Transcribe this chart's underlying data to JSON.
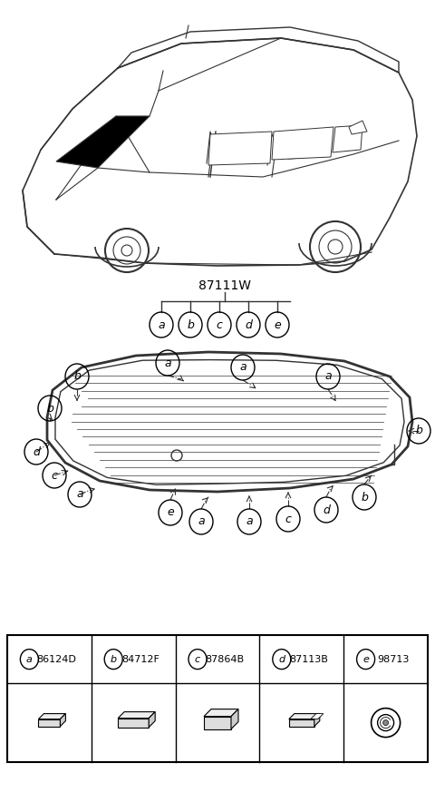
{
  "bg_color": "#ffffff",
  "title": "87111W",
  "parts": [
    {
      "label": "a",
      "part_num": "86124D"
    },
    {
      "label": "b",
      "part_num": "84712F"
    },
    {
      "label": "c",
      "part_num": "87864B"
    },
    {
      "label": "d",
      "part_num": "87113B"
    },
    {
      "label": "e",
      "part_num": "98713"
    }
  ],
  "line_color": "#333333",
  "fig_w": 4.8,
  "fig_h": 8.84,
  "dpi": 100
}
